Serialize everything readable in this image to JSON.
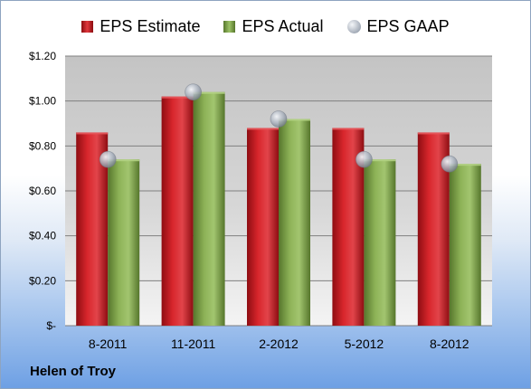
{
  "chart_data": {
    "type": "bar",
    "categories": [
      "8-2011",
      "11-2011",
      "2-2012",
      "5-2012",
      "8-2012"
    ],
    "series": [
      {
        "name": "EPS Estimate",
        "kind": "bar",
        "color": "#c8161d",
        "values": [
          0.86,
          1.02,
          0.88,
          0.88,
          0.86
        ]
      },
      {
        "name": "EPS Actual",
        "kind": "bar",
        "color": "#7ea34a",
        "values": [
          0.74,
          1.04,
          0.92,
          0.74,
          0.72
        ]
      },
      {
        "name": "EPS GAAP",
        "kind": "marker",
        "color": "#b5bcc6",
        "values": [
          0.74,
          1.04,
          0.92,
          0.74,
          0.72
        ]
      }
    ],
    "ylim": [
      0,
      1.2
    ],
    "yticks": [
      {
        "value": 0,
        "label": "$-"
      },
      {
        "value": 0.2,
        "label": "$0.20"
      },
      {
        "value": 0.4,
        "label": "$0.40"
      },
      {
        "value": 0.6,
        "label": "$0.60"
      },
      {
        "value": 0.8,
        "label": "$0.80"
      },
      {
        "value": 1.0,
        "label": "$1.00"
      },
      {
        "value": 1.2,
        "label": "$1.20"
      }
    ],
    "grid": true,
    "legend_position": "top"
  },
  "company": "Helen of Troy"
}
